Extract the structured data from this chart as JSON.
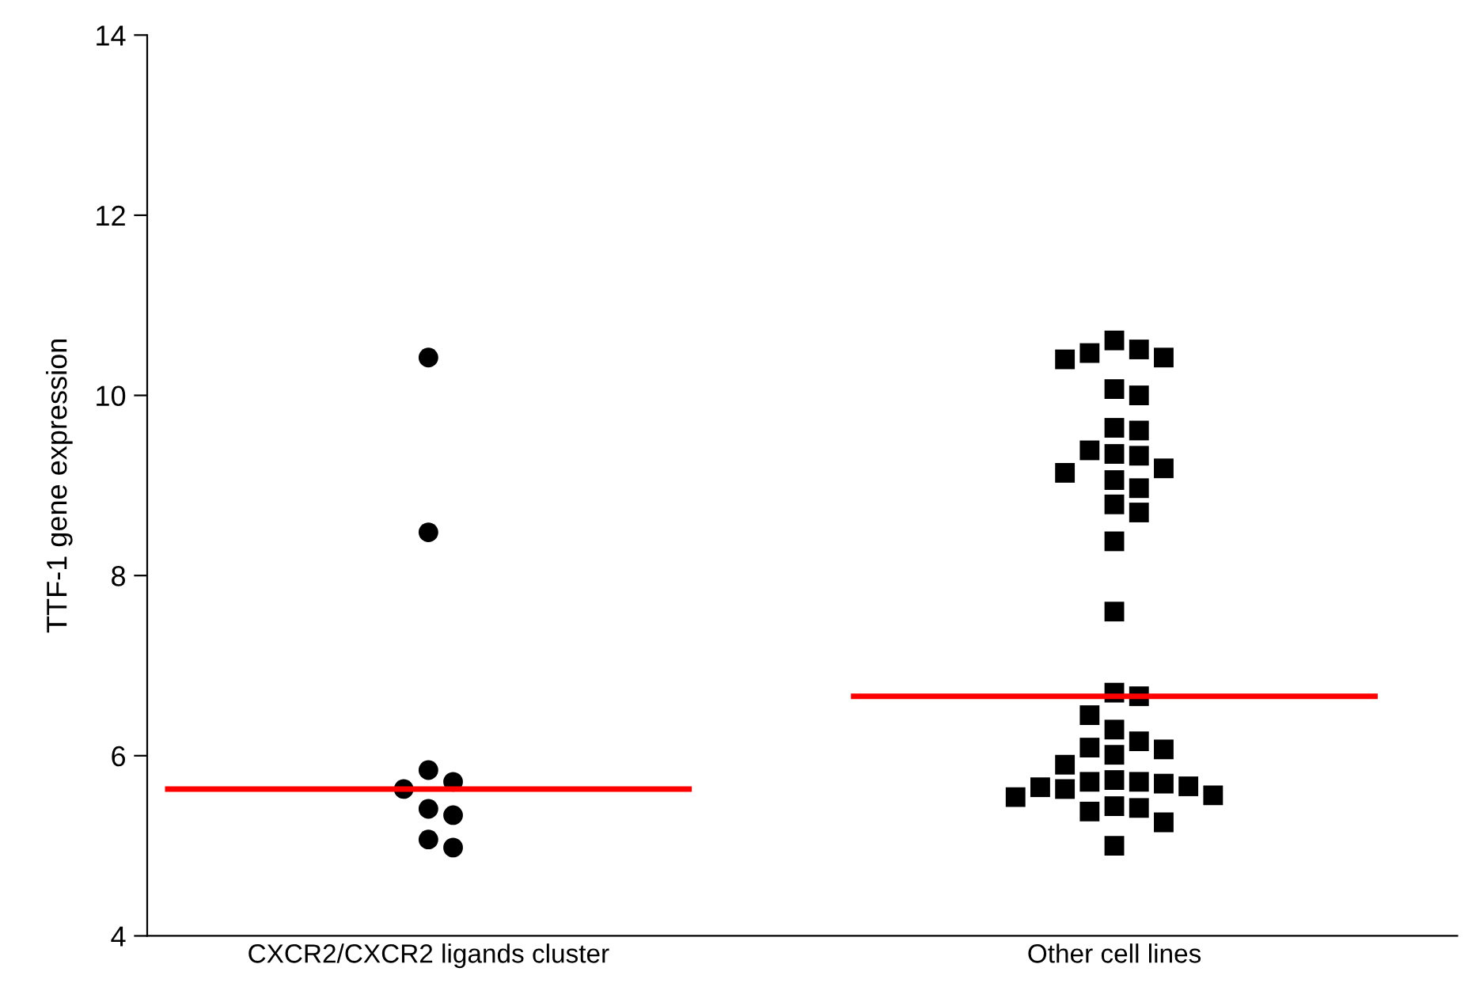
{
  "chart_data": {
    "type": "scatter",
    "ylabel": "TTF-1 gene expression",
    "categories": [
      "CXCR2/CXCR2 ligands cluster",
      "Other cell lines"
    ],
    "ylim": [
      4,
      14
    ],
    "yticks": [
      4,
      6,
      8,
      10,
      12,
      14
    ],
    "grid": false,
    "legend": false,
    "series": [
      {
        "marker": "circle",
        "color": "#000000",
        "x": [
          "CXCR2/CXCR2 ligands cluster",
          "CXCR2/CXCR2 ligands cluster",
          "CXCR2/CXCR2 ligands cluster",
          "CXCR2/CXCR2 ligands cluster",
          "CXCR2/CXCR2 ligands cluster",
          "CXCR2/CXCR2 ligands cluster",
          "CXCR2/CXCR2 ligands cluster",
          "CXCR2/CXCR2 ligands cluster",
          "CXCR2/CXCR2 ligands cluster"
        ],
        "values": [
          10.42,
          8.48,
          5.84,
          5.71,
          5.63,
          5.41,
          5.34,
          5.07,
          4.98
        ]
      },
      {
        "marker": "square",
        "color": "#000000",
        "x": [
          "Other cell lines",
          "Other cell lines",
          "Other cell lines",
          "Other cell lines",
          "Other cell lines",
          "Other cell lines",
          "Other cell lines",
          "Other cell lines",
          "Other cell lines",
          "Other cell lines",
          "Other cell lines",
          "Other cell lines",
          "Other cell lines",
          "Other cell lines",
          "Other cell lines",
          "Other cell lines",
          "Other cell lines",
          "Other cell lines",
          "Other cell lines",
          "Other cell lines",
          "Other cell lines",
          "Other cell lines",
          "Other cell lines",
          "Other cell lines",
          "Other cell lines",
          "Other cell lines",
          "Other cell lines",
          "Other cell lines",
          "Other cell lines",
          "Other cell lines",
          "Other cell lines",
          "Other cell lines",
          "Other cell lines",
          "Other cell lines",
          "Other cell lines",
          "Other cell lines",
          "Other cell lines",
          "Other cell lines",
          "Other cell lines",
          "Other cell lines",
          "Other cell lines",
          "Other cell lines",
          "Other cell lines"
        ],
        "values": [
          10.61,
          10.51,
          10.47,
          10.42,
          10.4,
          10.07,
          10.0,
          9.64,
          9.61,
          9.39,
          9.35,
          9.33,
          9.19,
          9.14,
          9.06,
          8.97,
          8.79,
          8.7,
          8.38,
          7.6,
          6.7,
          6.66,
          6.45,
          6.29,
          6.16,
          6.09,
          6.07,
          6.01,
          5.9,
          5.73,
          5.71,
          5.71,
          5.69,
          5.66,
          5.65,
          5.63,
          5.56,
          5.54,
          5.44,
          5.42,
          5.38,
          5.26,
          5.0
        ]
      }
    ],
    "ref_lines": [
      {
        "axis": "y",
        "value": 5.63,
        "color": "#ff0000"
      },
      {
        "axis": "y",
        "value": 6.66,
        "color": "#ff0000"
      }
    ]
  }
}
